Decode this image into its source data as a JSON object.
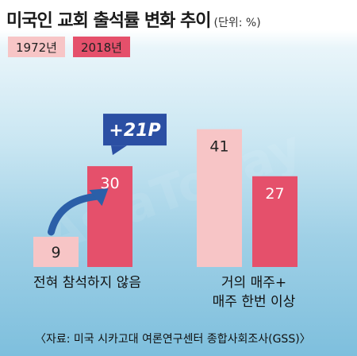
{
  "title": "미국인 교회 출석률 변화 추이",
  "unit": "(단위: %)",
  "colors": {
    "y1972": "#f7c5c6",
    "y2018": "#e5506b",
    "callout": "#2b4fa3"
  },
  "callout": "+21P",
  "source": "〈자료: 미국 시카고대 여론연구센터 종합사회조사(GSS)〉",
  "chart_data": {
    "type": "bar",
    "categories": [
      "전혀 참석하지 않음",
      "거의 매주+ 매주 한번 이상"
    ],
    "category_lines": [
      [
        "전혀 참석하지 않음"
      ],
      [
        "거의 매주+",
        "매주 한번 이상"
      ]
    ],
    "series": [
      {
        "name": "1972년",
        "values": [
          9,
          41
        ]
      },
      {
        "name": "2018년",
        "values": [
          30,
          27
        ]
      }
    ],
    "data_labels": true,
    "annotations": [
      "+21P"
    ],
    "legend_position": "top-left",
    "grid": false
  }
}
